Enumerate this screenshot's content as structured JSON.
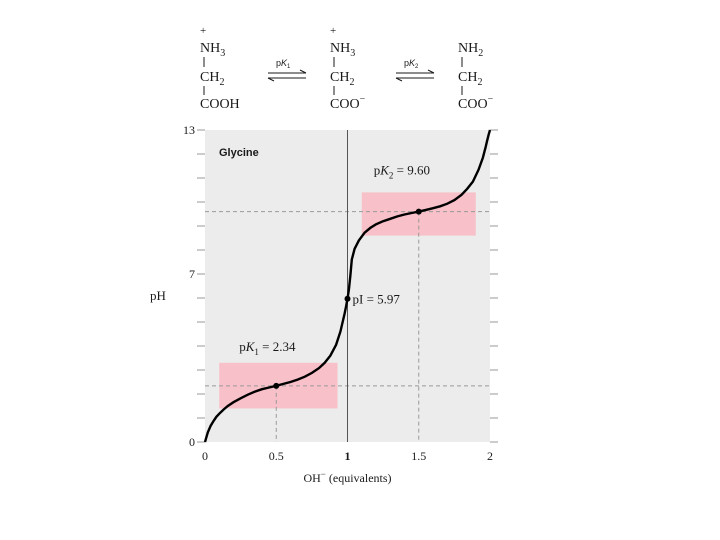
{
  "scheme": {
    "species": [
      {
        "charge": "+",
        "amine": "NH",
        "amine_sub": "3",
        "middle": "CH",
        "middle_sub": "2",
        "carboxyl": "COOH",
        "carboxyl_sup": ""
      },
      {
        "charge": "+",
        "amine": "NH",
        "amine_sub": "3",
        "middle": "CH",
        "middle_sub": "2",
        "carboxyl": "COO",
        "carboxyl_sup": "−"
      },
      {
        "charge": "",
        "amine": "NH",
        "amine_sub": "2",
        "middle": "CH",
        "middle_sub": "2",
        "carboxyl": "COO",
        "carboxyl_sup": "−"
      }
    ],
    "equilibria": [
      {
        "p": "p",
        "k": "K",
        "sub": "1"
      },
      {
        "p": "p",
        "k": "K",
        "sub": "2"
      }
    ]
  },
  "chart_data": {
    "type": "line",
    "title": "Glycine",
    "xlabel_main": "OH",
    "xlabel_sup": "−",
    "xlabel_rest": " (equivalents)",
    "ylabel": "pH",
    "xlim": [
      0,
      2
    ],
    "ylim": [
      0,
      13
    ],
    "x_ticks": [
      "0",
      "0.5",
      "1",
      "1.5",
      "2"
    ],
    "y_ticks": [
      "0",
      "7",
      "13"
    ],
    "grid": false,
    "colors": {
      "background": "#ececec",
      "buffer": "#f8c0c8",
      "curve": "#000000",
      "guide": "#999999"
    },
    "series": [
      {
        "x": [
          0.0,
          0.01,
          0.02,
          0.04,
          0.06,
          0.08,
          0.1,
          0.13,
          0.16,
          0.2,
          0.25,
          0.3,
          0.35,
          0.4,
          0.45,
          0.5,
          0.55,
          0.6,
          0.65,
          0.7,
          0.75,
          0.8,
          0.84,
          0.88,
          0.92,
          0.95,
          0.97,
          0.98,
          0.99,
          1.0,
          1.01,
          1.02,
          1.03,
          1.05,
          1.08,
          1.12,
          1.16,
          1.2,
          1.25,
          1.3,
          1.35,
          1.4,
          1.45,
          1.5,
          1.55,
          1.6,
          1.65,
          1.7,
          1.75,
          1.8,
          1.84,
          1.88,
          1.92,
          1.95,
          1.97,
          1.98,
          1.99,
          2.0
        ],
        "y": [
          0.0,
          0.2,
          0.4,
          0.68,
          0.88,
          1.05,
          1.18,
          1.35,
          1.5,
          1.66,
          1.82,
          1.97,
          2.1,
          2.2,
          2.27,
          2.34,
          2.42,
          2.5,
          2.6,
          2.72,
          2.88,
          3.08,
          3.3,
          3.6,
          4.05,
          4.6,
          5.1,
          5.35,
          5.66,
          5.97,
          6.35,
          6.95,
          7.6,
          8.05,
          8.4,
          8.72,
          8.92,
          9.07,
          9.2,
          9.3,
          9.4,
          9.48,
          9.54,
          9.6,
          9.67,
          9.74,
          9.82,
          9.93,
          10.08,
          10.3,
          10.55,
          10.85,
          11.35,
          11.85,
          12.3,
          12.55,
          12.8,
          13.0
        ]
      }
    ],
    "buffer_regions": [
      {
        "x": [
          0.1,
          0.93
        ],
        "y": [
          1.4,
          3.3
        ]
      },
      {
        "x": [
          1.1,
          1.9
        ],
        "y": [
          8.6,
          10.4
        ]
      }
    ],
    "points": [
      {
        "x": 0.5,
        "y": 2.34,
        "label_p": "p",
        "label_k": "K",
        "label_sub": "1",
        "label_val": " = 2.34"
      },
      {
        "x": 1.0,
        "y": 5.97,
        "label_p": "pI",
        "label_k": "",
        "label_sub": "",
        "label_val": " = 5.97"
      },
      {
        "x": 1.5,
        "y": 9.6,
        "label_p": "p",
        "label_k": "K",
        "label_sub": "2",
        "label_val": " = 9.60"
      }
    ]
  }
}
